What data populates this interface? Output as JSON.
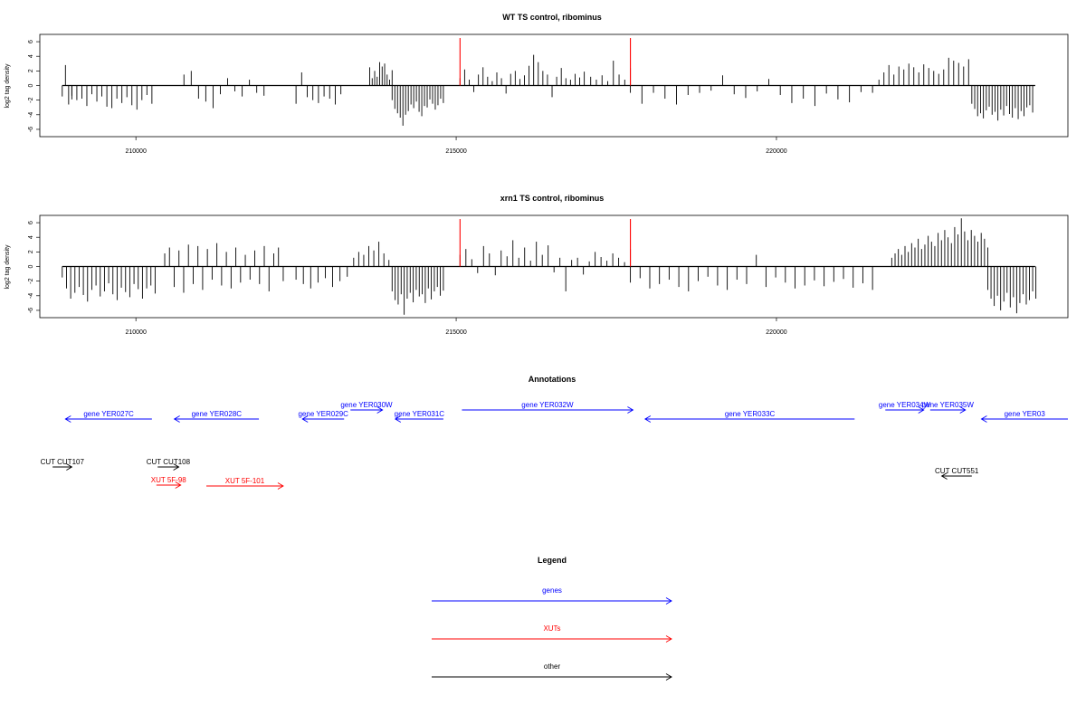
{
  "chart_data": [
    {
      "type": "bar",
      "title": "WT TS control, ribominus",
      "xlabel": "",
      "ylabel": "log2 tag density",
      "ylim": [
        -7,
        7
      ],
      "xlim": [
        208500,
        224550
      ],
      "yticks": [
        -6,
        -4,
        -2,
        0,
        2,
        4,
        6
      ],
      "xticks": [
        210000,
        215000,
        220000
      ],
      "xtick_labels": [
        "210000",
        "215000",
        "220000"
      ],
      "bar_color": "#000000",
      "marker_color": "#ff0000",
      "markers": [
        {
          "x": 215060,
          "y": 6.5
        },
        {
          "x": 217720,
          "y": 6.5
        }
      ],
      "regions": [
        {
          "start": 208850,
          "end": 209000,
          "values": [
            -1.5,
            2.8,
            -2.6,
            -1.9
          ]
        },
        {
          "start": 209000,
          "end": 210250,
          "values": [
            -1.4,
            -2.0,
            -1.8,
            -2.8,
            -1.2,
            -2.2,
            -1.5,
            -2.9,
            -3.1,
            -1.8,
            -2.4,
            -1.6,
            -2.7,
            -3.3,
            -2.0,
            -1.3,
            -2.5
          ]
        },
        {
          "start": 210750,
          "end": 212000,
          "values": [
            1.5,
            2.0,
            -1.8,
            -2.2,
            -3.1,
            -1.2,
            1.0,
            -0.8,
            -1.5,
            0.8,
            -1.0,
            -1.4
          ]
        },
        {
          "start": 212500,
          "end": 213200,
          "values": [
            -2.5,
            1.8,
            -1.6,
            -2.0,
            -2.4,
            -1.5,
            -1.8,
            -2.6,
            -1.2
          ]
        },
        {
          "start": 213650,
          "end": 214000,
          "values": [
            2.5,
            1.0,
            2.0,
            1.2,
            3.2,
            2.6,
            3.0,
            1.5,
            0.8,
            2.1
          ]
        },
        {
          "start": 214000,
          "end": 214800,
          "values": [
            -2.0,
            -3.2,
            -3.8,
            -4.4,
            -5.5,
            -4.0,
            -3.5,
            -2.6,
            -3.1,
            -2.2,
            -3.6,
            -4.2,
            -2.8,
            -3.0,
            -1.9,
            -2.5,
            -3.3,
            -2.7,
            -1.8,
            -2.4
          ]
        },
        {
          "start": 215060,
          "end": 217000,
          "values": [
            1.0,
            2.2,
            0.8,
            -0.9,
            1.5,
            2.5,
            1.2,
            0.6,
            1.8,
            1.0,
            -1.1,
            1.6,
            2.0,
            0.9,
            1.4,
            2.7,
            4.2,
            3.2,
            2.0,
            1.5,
            -1.6,
            1.2,
            2.4,
            1.0,
            0.8,
            1.6,
            1.1,
            1.9
          ]
        },
        {
          "start": 217100,
          "end": 217720,
          "values": [
            1.2,
            0.8,
            1.4,
            0.6,
            3.4,
            1.5,
            0.8,
            -1.0
          ]
        },
        {
          "start": 217720,
          "end": 221500,
          "values": [
            2.4,
            -2.5,
            -1.0,
            -1.8,
            -2.6,
            -1.3,
            -1.0,
            -0.7,
            1.4,
            -1.2,
            -1.7,
            -0.8,
            0.9,
            -1.3,
            -2.4,
            -1.8,
            -2.8,
            -1.1,
            -1.9,
            -2.3,
            -0.9,
            -1.0
          ]
        },
        {
          "start": 221600,
          "end": 223000,
          "values": [
            0.8,
            1.8,
            2.8,
            1.5,
            2.6,
            2.2,
            3.0,
            2.5,
            1.8,
            2.9,
            2.4,
            2.0,
            1.6,
            2.2,
            3.8,
            3.4,
            3.1,
            2.6,
            3.6
          ]
        },
        {
          "start": 223050,
          "end": 224000,
          "values": [
            -2.5,
            -3.2,
            -4.2,
            -3.8,
            -4.5,
            -3.4,
            -2.9,
            -4.0,
            -3.6,
            -4.8,
            -3.3,
            -4.1,
            -2.8,
            -3.9,
            -4.4,
            -3.1,
            -4.6,
            -3.5,
            -4.2,
            -3.0,
            -2.7,
            -3.7
          ]
        }
      ]
    },
    {
      "type": "bar",
      "title": "xrn1 TS control, ribominus",
      "xlabel": "",
      "ylabel": "log2 tag density",
      "ylim": [
        -7,
        7
      ],
      "xlim": [
        208500,
        224550
      ],
      "yticks": [
        -6,
        -4,
        -2,
        0,
        2,
        4,
        6
      ],
      "xticks": [
        210000,
        215000,
        220000
      ],
      "xtick_labels": [
        "210000",
        "215000",
        "220000"
      ],
      "bar_color": "#000000",
      "marker_color": "#ff0000",
      "markers": [
        {
          "x": 215060,
          "y": 6.5
        },
        {
          "x": 217720,
          "y": 6.5
        }
      ],
      "regions": [
        {
          "start": 208850,
          "end": 210300,
          "values": [
            -1.5,
            -3.0,
            -4.4,
            -3.6,
            -2.8,
            -3.9,
            -4.8,
            -3.2,
            -2.6,
            -4.1,
            -3.4,
            -2.3,
            -3.8,
            -4.6,
            -2.9,
            -3.5,
            -4.2,
            -2.4,
            -3.1,
            -4.4,
            -3.0,
            -2.6,
            -3.7
          ]
        },
        {
          "start": 210450,
          "end": 212300,
          "values": [
            1.8,
            2.6,
            -2.8,
            2.2,
            -3.6,
            3.0,
            -2.4,
            2.8,
            -3.2,
            2.4,
            -1.8,
            3.2,
            -2.6,
            2.0,
            -3.0,
            2.6,
            -2.2,
            1.6,
            -1.8,
            2.2,
            -2.4,
            2.8,
            -3.4,
            1.8,
            2.6,
            -2.0
          ]
        },
        {
          "start": 212500,
          "end": 213300,
          "values": [
            -1.8,
            -2.4,
            -3.0,
            -2.2,
            -1.6,
            -2.8,
            -2.0,
            -1.4
          ]
        },
        {
          "start": 213400,
          "end": 213950,
          "values": [
            1.2,
            2.0,
            1.6,
            2.8,
            2.2,
            3.4,
            1.8,
            0.9
          ]
        },
        {
          "start": 214000,
          "end": 214800,
          "values": [
            -3.4,
            -4.6,
            -5.2,
            -3.8,
            -6.6,
            -4.4,
            -3.6,
            -4.9,
            -3.2,
            -4.1,
            -3.8,
            -5.0,
            -3.0,
            -4.5,
            -3.4,
            -2.8,
            -4.0,
            -3.3
          ]
        },
        {
          "start": 215060,
          "end": 217720,
          "values": [
            1.6,
            2.4,
            1.0,
            -0.9,
            2.8,
            1.8,
            -1.2,
            2.2,
            1.4,
            3.6,
            1.2,
            2.6,
            0.8,
            3.4,
            1.6,
            2.9,
            -0.8,
            1.2,
            -3.4,
            0.9,
            1.2,
            -1.1,
            0.7,
            2.0,
            1.3,
            0.8,
            1.8,
            1.2,
            0.6,
            2.4
          ]
        },
        {
          "start": 217720,
          "end": 221500,
          "values": [
            -2.2,
            -1.6,
            -3.0,
            -2.4,
            -1.8,
            -2.8,
            -3.4,
            -2.0,
            -1.4,
            -2.6,
            -3.2,
            -1.8,
            -2.4,
            1.6,
            -2.8,
            -1.5,
            -2.2,
            -3.0,
            -2.6,
            -1.9,
            -2.7,
            -2.1,
            -1.7,
            -2.9,
            -2.3,
            -3.2
          ]
        },
        {
          "start": 221800,
          "end": 223300,
          "values": [
            1.2,
            1.8,
            2.4,
            1.6,
            2.8,
            2.0,
            3.2,
            2.6,
            3.8,
            2.4,
            3.0,
            4.2,
            3.4,
            2.8,
            4.6,
            3.6,
            5.0,
            4.0,
            3.2,
            5.4,
            4.4,
            6.6,
            4.8,
            3.6,
            5.0,
            4.2,
            3.4,
            4.6,
            3.8,
            2.6
          ]
        },
        {
          "start": 223300,
          "end": 224050,
          "values": [
            -3.2,
            -4.4,
            -5.4,
            -4.0,
            -6.0,
            -4.8,
            -3.6,
            -5.6,
            -4.2,
            -6.4,
            -5.0,
            -3.8,
            -5.2,
            -4.6,
            -3.4,
            -4.4
          ]
        }
      ]
    }
  ],
  "annotations": {
    "title": "Annotations",
    "colors": {
      "genes": "#0000ff",
      "XUTs": "#ff0000",
      "other": "#000000"
    },
    "genes": [
      {
        "label": "gene YER027C",
        "start": 210250,
        "end": 208900,
        "row": 2
      },
      {
        "label": "gene YER028C",
        "start": 211920,
        "end": 210600,
        "row": 2
      },
      {
        "label": "gene YER029C",
        "start": 213250,
        "end": 212600,
        "row": 2
      },
      {
        "label": "gene YER030W",
        "start": 213350,
        "end": 213850,
        "row": 1
      },
      {
        "label": "gene YER031C",
        "start": 214800,
        "end": 214050,
        "row": 2
      },
      {
        "label": "gene YER032W",
        "start": 215090,
        "end": 217760,
        "row": 1
      },
      {
        "label": "gene YER033C",
        "start": 221220,
        "end": 217950,
        "row": 2
      },
      {
        "label": "gene YER034W",
        "start": 221700,
        "end": 222300,
        "row": 1
      },
      {
        "label": "gene YER035W",
        "start": 222400,
        "end": 222950,
        "row": 1
      },
      {
        "label": "gene YER03",
        "start": 224550,
        "end": 223200,
        "row": 2
      }
    ],
    "other": [
      {
        "label": "CUT CUT107",
        "start": 208700,
        "end": 209000,
        "row": 3
      },
      {
        "label": "CUT CUT108",
        "start": 210340,
        "end": 210670,
        "row": 3
      },
      {
        "label": "CUT CUT551",
        "start": 223050,
        "end": 222580,
        "row": 4
      }
    ],
    "xuts": [
      {
        "label": "XUT 5F-98",
        "start": 210320,
        "end": 210700,
        "row": 5
      },
      {
        "label": "XUT 5F-101",
        "start": 211100,
        "end": 212300,
        "row": 6
      }
    ]
  },
  "legend": {
    "title": "Legend",
    "items": [
      {
        "label": "genes",
        "color": "#0000ff"
      },
      {
        "label": "XUTs",
        "color": "#ff0000"
      },
      {
        "label": "other",
        "color": "#000000"
      }
    ]
  }
}
